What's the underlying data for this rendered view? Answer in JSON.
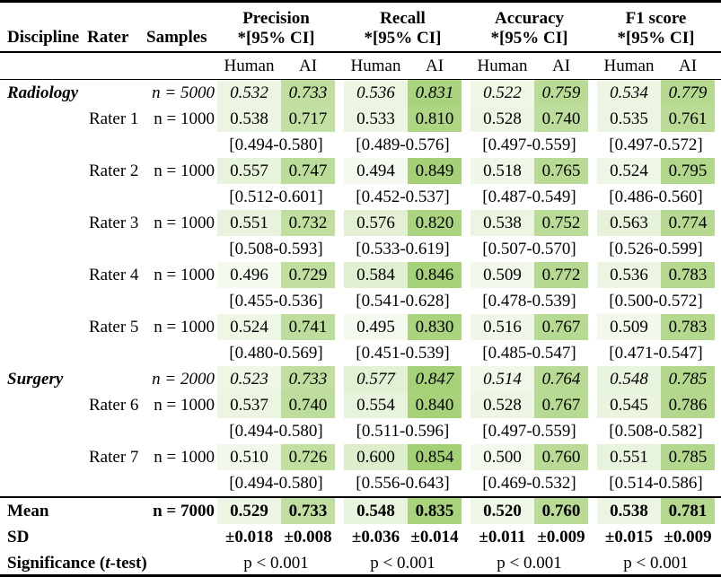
{
  "heatmap": {
    "low_value": 0.45,
    "high_value": 0.87,
    "low_color": "#ffffff",
    "high_color": "#a0ce70"
  },
  "header": {
    "discipline": "Discipline",
    "rater": "Rater",
    "samples": "Samples",
    "metrics": [
      "Precision",
      "Recall",
      "Accuracy",
      "F1 score"
    ],
    "ci_note": "*[95% CI]",
    "human": "Human",
    "ai": "AI"
  },
  "rows": [
    {
      "type": "group",
      "discipline": "Radiology",
      "rater": "",
      "samples": "n = 5000",
      "values": [
        "0.532",
        "0.733",
        "0.536",
        "0.831",
        "0.522",
        "0.759",
        "0.534",
        "0.779"
      ]
    },
    {
      "type": "rater",
      "discipline": "",
      "rater": "Rater 1",
      "samples": "n = 1000",
      "values": [
        "0.538",
        "0.717",
        "0.533",
        "0.810",
        "0.528",
        "0.740",
        "0.535",
        "0.761"
      ]
    },
    {
      "type": "ci",
      "cis": [
        "[0.494-0.580]",
        "[0.489-0.576]",
        "[0.497-0.559]",
        "[0.497-0.572]"
      ]
    },
    {
      "type": "rater",
      "discipline": "",
      "rater": "Rater 2",
      "samples": "n = 1000",
      "values": [
        "0.557",
        "0.747",
        "0.494",
        "0.849",
        "0.518",
        "0.765",
        "0.524",
        "0.795"
      ]
    },
    {
      "type": "ci",
      "cis": [
        "[0.512-0.601]",
        "[0.452-0.537]",
        "[0.487-0.549]",
        "[0.486-0.560]"
      ]
    },
    {
      "type": "rater",
      "discipline": "",
      "rater": "Rater 3",
      "samples": "n = 1000",
      "values": [
        "0.551",
        "0.732",
        "0.576",
        "0.820",
        "0.538",
        "0.752",
        "0.563",
        "0.774"
      ]
    },
    {
      "type": "ci",
      "cis": [
        "[0.508-0.593]",
        "[0.533-0.619]",
        "[0.507-0.570]",
        "[0.526-0.599]"
      ]
    },
    {
      "type": "rater",
      "discipline": "",
      "rater": "Rater 4",
      "samples": "n = 1000",
      "values": [
        "0.496",
        "0.729",
        "0.584",
        "0.846",
        "0.509",
        "0.772",
        "0.536",
        "0.783"
      ]
    },
    {
      "type": "ci",
      "cis": [
        "[0.455-0.536]",
        "[0.541-0.628]",
        "[0.478-0.539]",
        "[0.500-0.572]"
      ]
    },
    {
      "type": "rater",
      "discipline": "",
      "rater": "Rater 5",
      "samples": "n = 1000",
      "values": [
        "0.524",
        "0.741",
        "0.495",
        "0.830",
        "0.516",
        "0.767",
        "0.509",
        "0.783"
      ]
    },
    {
      "type": "ci",
      "cis": [
        "[0.480-0.569]",
        "[0.451-0.539]",
        "[0.485-0.547]",
        "[0.471-0.547]"
      ]
    },
    {
      "type": "group",
      "discipline": "Surgery",
      "rater": "",
      "samples": "n = 2000",
      "values": [
        "0.523",
        "0.733",
        "0.577",
        "0.847",
        "0.514",
        "0.764",
        "0.548",
        "0.785"
      ]
    },
    {
      "type": "rater",
      "discipline": "",
      "rater": "Rater 6",
      "samples": "n = 1000",
      "values": [
        "0.537",
        "0.740",
        "0.554",
        "0.840",
        "0.528",
        "0.767",
        "0.545",
        "0.786"
      ]
    },
    {
      "type": "ci",
      "cis": [
        "[0.494-0.580]",
        "[0.511-0.596]",
        "[0.497-0.559]",
        "[0.508-0.582]"
      ]
    },
    {
      "type": "rater",
      "discipline": "",
      "rater": "Rater 7",
      "samples": "n = 1000",
      "values": [
        "0.510",
        "0.726",
        "0.600",
        "0.854",
        "0.500",
        "0.760",
        "0.551",
        "0.785"
      ]
    },
    {
      "type": "ci",
      "cis": [
        "[0.494-0.580]",
        "[0.556-0.643]",
        "[0.469-0.532]",
        "[0.514-0.586]"
      ]
    },
    {
      "type": "mean",
      "discipline": "Mean",
      "rater": "",
      "samples": "n = 7000",
      "values": [
        "0.529",
        "0.733",
        "0.548",
        "0.835",
        "0.520",
        "0.760",
        "0.538",
        "0.781"
      ]
    },
    {
      "type": "sd",
      "discipline": "SD",
      "rater": "",
      "samples": "",
      "values": [
        "±0.018",
        "±0.008",
        "±0.036",
        "±0.014",
        "±0.011",
        "±0.009",
        "±0.015",
        "±0.009"
      ]
    },
    {
      "type": "sig",
      "label_prefix": "Significance (",
      "label_italic": "t",
      "label_suffix": "-test)",
      "sig_values": [
        "p < 0.001",
        "p < 0.001",
        "p < 0.001",
        "p < 0.001"
      ]
    }
  ]
}
